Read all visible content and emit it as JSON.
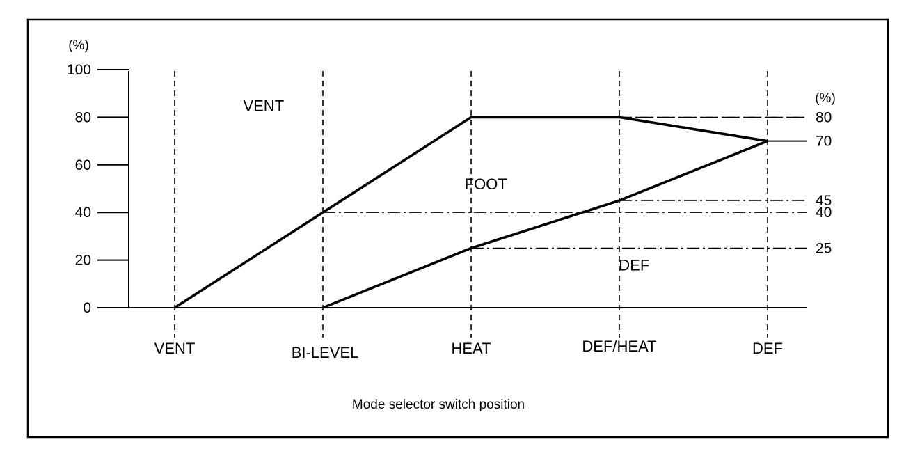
{
  "chart_data": {
    "type": "line",
    "xlabel": "Mode selector switch position",
    "ylabel": "(%)",
    "right_axis_label": "(%)",
    "categories": [
      "VENT",
      "BI-LEVEL",
      "HEAT",
      "DEF/HEAT",
      "DEF"
    ],
    "ylim": [
      0,
      100
    ],
    "yticks": [
      "0",
      "20",
      "40",
      "60",
      "80",
      "100"
    ],
    "right_tick_labels": [
      {
        "value": 80,
        "text": "80"
      },
      {
        "value": 70,
        "text": "70"
      },
      {
        "value": 45,
        "text": "45"
      },
      {
        "value": 40,
        "text": "40"
      },
      {
        "value": 25,
        "text": "25"
      }
    ],
    "series": [
      {
        "values": [
          0,
          40,
          80,
          80,
          70
        ]
      },
      {
        "values": [
          null,
          0,
          25,
          45,
          70
        ]
      }
    ],
    "region_labels": [
      {
        "text": "VENT",
        "x": 0.6,
        "y": 85
      },
      {
        "text": "FOOT",
        "x": 2.1,
        "y": 52
      },
      {
        "text": "DEF",
        "x": 3.1,
        "y": 18
      }
    ],
    "grid": "vertical dashed at each category",
    "colors": {
      "line": "#000000",
      "background": "#ffffff"
    }
  }
}
